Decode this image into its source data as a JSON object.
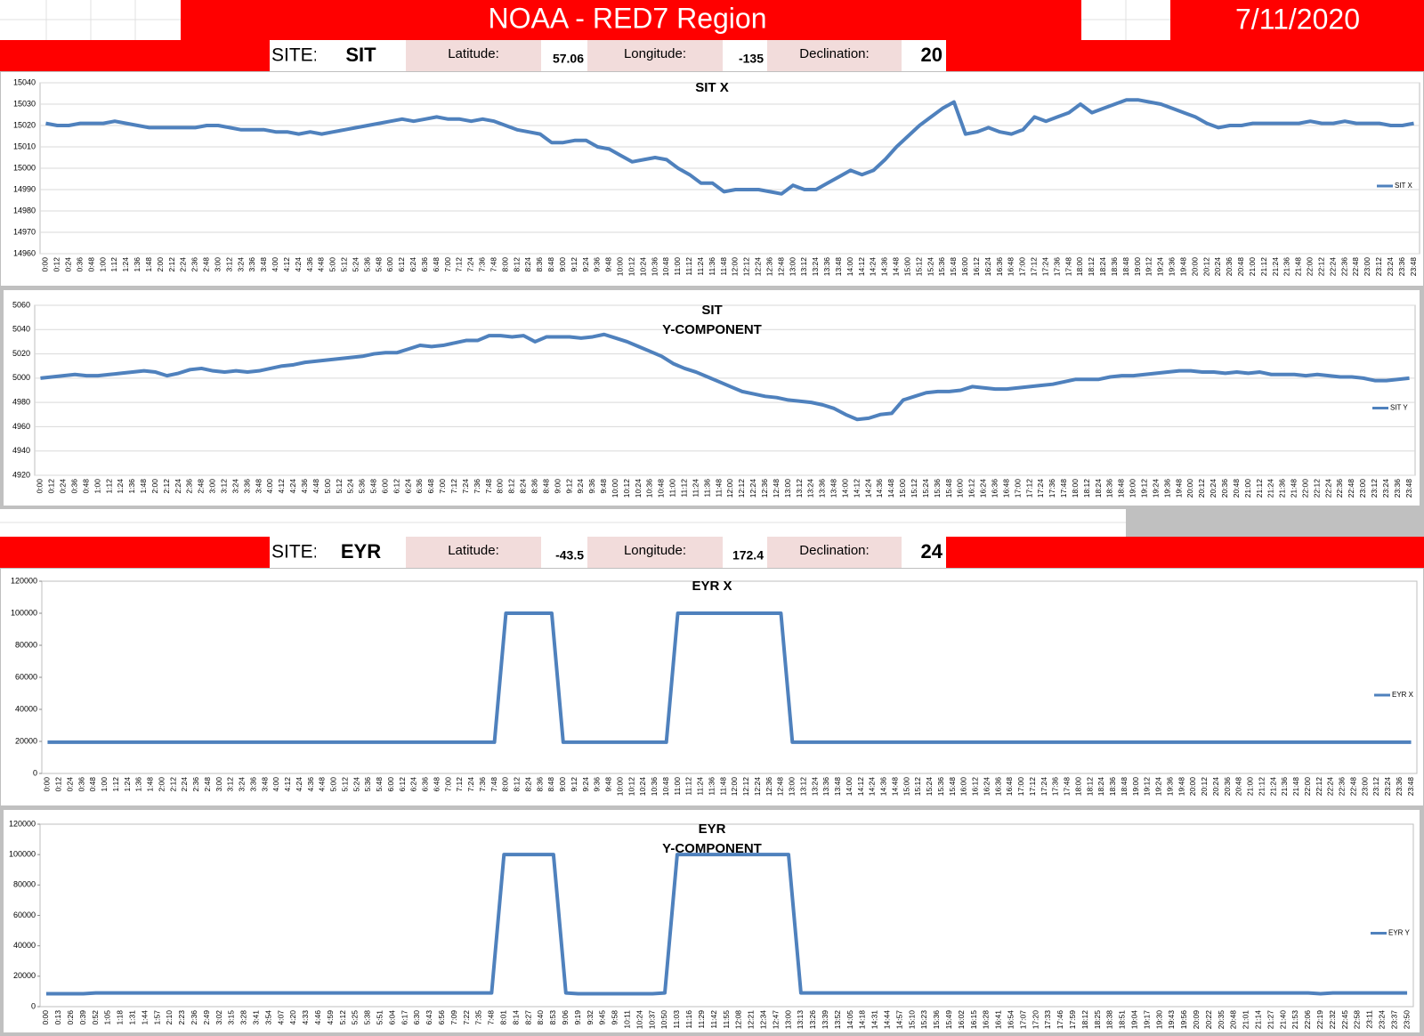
{
  "header": {
    "title": "NOAA - RED7 Region",
    "date": "7/11/2020"
  },
  "sites": [
    {
      "site_label": "SITE:",
      "site": "SIT",
      "latitude_label": "Latitude:",
      "latitude": 57.06,
      "longitude_label": "Longitude:",
      "longitude": -135,
      "declination_label": "Declination:",
      "declination": 20
    },
    {
      "site_label": "SITE:",
      "site": "EYR",
      "latitude_label": "Latitude:",
      "latitude": -43.5,
      "longitude_label": "Longitude:",
      "longitude": 172.4,
      "declination_label": "Declination:",
      "declination": 24
    }
  ],
  "chart_data": [
    {
      "type": "line",
      "title": "SIT X",
      "legend": "right",
      "categories": [
        "0:00",
        "0:12",
        "0:24",
        "0:36",
        "0:48",
        "1:00",
        "1:12",
        "1:24",
        "1:36",
        "1:48",
        "2:00",
        "2:12",
        "2:24",
        "2:36",
        "2:48",
        "3:00",
        "3:12",
        "3:24",
        "3:36",
        "3:48",
        "4:00",
        "4:12",
        "4:24",
        "4:36",
        "4:48",
        "5:00",
        "5:12",
        "5:24",
        "5:36",
        "5:48",
        "6:00",
        "6:12",
        "6:24",
        "6:36",
        "6:48",
        "7:00",
        "7:12",
        "7:24",
        "7:36",
        "7:48",
        "8:00",
        "8:12",
        "8:24",
        "8:36",
        "8:48",
        "9:00",
        "9:12",
        "9:24",
        "9:36",
        "9:48",
        "10:00",
        "10:12",
        "10:24",
        "10:36",
        "10:48",
        "11:00",
        "11:12",
        "11:24",
        "11:36",
        "11:48",
        "12:00",
        "12:12",
        "12:24",
        "12:36",
        "12:48",
        "13:00",
        "13:12",
        "13:24",
        "13:36",
        "13:48",
        "14:00",
        "14:12",
        "14:24",
        "14:36",
        "14:48",
        "15:00",
        "15:12",
        "15:24",
        "15:36",
        "15:48",
        "16:00",
        "16:12",
        "16:24",
        "16:36",
        "16:48",
        "17:00",
        "17:12",
        "17:24",
        "17:36",
        "17:48",
        "18:00",
        "18:12",
        "18:24",
        "18:36",
        "18:48",
        "19:00",
        "19:12",
        "19:24",
        "19:36",
        "19:48",
        "20:00",
        "20:12",
        "20:24",
        "20:36",
        "20:48",
        "21:00",
        "21:12",
        "21:24",
        "21:36",
        "21:48",
        "22:00",
        "22:12",
        "22:24",
        "22:36",
        "22:48",
        "23:00",
        "23:12",
        "23:24",
        "23:36",
        "23:48"
      ],
      "series": [
        {
          "name": "SIT X",
          "color": "#4f81bd",
          "values": [
            15021,
            15020,
            15020,
            15021,
            15021,
            15021,
            15022,
            15021,
            15020,
            15019,
            15019,
            15019,
            15019,
            15019,
            15020,
            15020,
            15019,
            15018,
            15018,
            15018,
            15017,
            15017,
            15016,
            15017,
            15016,
            15017,
            15018,
            15019,
            15020,
            15021,
            15022,
            15023,
            15022,
            15023,
            15024,
            15023,
            15023,
            15022,
            15023,
            15022,
            15020,
            15018,
            15017,
            15016,
            15012,
            15012,
            15013,
            15013,
            15010,
            15009,
            15006,
            15003,
            15004,
            15005,
            15004,
            15000,
            14997,
            14993,
            14993,
            14989,
            14990,
            14990,
            14990,
            14989,
            14988,
            14992,
            14990,
            14990,
            14993,
            14996,
            14999,
            14997,
            14999,
            15004,
            15010,
            15015,
            15020,
            15024,
            15028,
            15031,
            15016,
            15017,
            15019,
            15017,
            15016,
            15018,
            15024,
            15022,
            15024,
            15026,
            15030,
            15026,
            15028,
            15030,
            15032,
            15032,
            15031,
            15030,
            15028,
            15026,
            15024,
            15021,
            15019,
            15020,
            15020,
            15021,
            15021,
            15021,
            15021,
            15021,
            15022,
            15021,
            15021,
            15022,
            15021,
            15021,
            15021,
            15020,
            15020,
            15021
          ]
        }
      ],
      "ylim": [
        14960,
        15040
      ],
      "yticks": [
        14960,
        14970,
        14980,
        14990,
        15000,
        15010,
        15020,
        15030,
        15040
      ],
      "grid": true
    },
    {
      "type": "line",
      "title": "SIT",
      "subtitle": "Y-COMPONENT",
      "legend": "right",
      "categories": [
        "0:00",
        "0:12",
        "0:24",
        "0:36",
        "0:48",
        "1:00",
        "1:12",
        "1:24",
        "1:36",
        "1:48",
        "2:00",
        "2:12",
        "2:24",
        "2:36",
        "2:48",
        "3:00",
        "3:12",
        "3:24",
        "3:36",
        "3:48",
        "4:00",
        "4:12",
        "4:24",
        "4:36",
        "4:48",
        "5:00",
        "5:12",
        "5:24",
        "5:36",
        "5:48",
        "6:00",
        "6:12",
        "6:24",
        "6:36",
        "6:48",
        "7:00",
        "7:12",
        "7:24",
        "7:36",
        "7:48",
        "8:00",
        "8:12",
        "8:24",
        "8:36",
        "8:48",
        "9:00",
        "9:12",
        "9:24",
        "9:36",
        "9:48",
        "10:00",
        "10:12",
        "10:24",
        "10:36",
        "10:48",
        "11:00",
        "11:12",
        "11:24",
        "11:36",
        "11:48",
        "12:00",
        "12:12",
        "12:24",
        "12:36",
        "12:48",
        "13:00",
        "13:12",
        "13:24",
        "13:36",
        "13:48",
        "14:00",
        "14:12",
        "14:24",
        "14:36",
        "14:48",
        "15:00",
        "15:12",
        "15:24",
        "15:36",
        "15:48",
        "16:00",
        "16:12",
        "16:24",
        "16:36",
        "16:48",
        "17:00",
        "17:12",
        "17:24",
        "17:36",
        "17:48",
        "18:00",
        "18:12",
        "18:24",
        "18:36",
        "18:48",
        "19:00",
        "19:12",
        "19:24",
        "19:36",
        "19:48",
        "20:00",
        "20:12",
        "20:24",
        "20:36",
        "20:48",
        "21:00",
        "21:12",
        "21:24",
        "21:36",
        "21:48",
        "22:00",
        "22:12",
        "22:24",
        "22:36",
        "22:48",
        "23:00",
        "23:12",
        "23:24",
        "23:36",
        "23:48"
      ],
      "series": [
        {
          "name": "SIT Y",
          "color": "#4f81bd",
          "values": [
            5000,
            5001,
            5002,
            5003,
            5002,
            5002,
            5003,
            5004,
            5005,
            5006,
            5005,
            5002,
            5004,
            5007,
            5008,
            5006,
            5005,
            5006,
            5005,
            5006,
            5008,
            5010,
            5011,
            5013,
            5014,
            5015,
            5016,
            5017,
            5018,
            5020,
            5021,
            5021,
            5024,
            5027,
            5026,
            5027,
            5029,
            5031,
            5031,
            5035,
            5035,
            5034,
            5035,
            5030,
            5034,
            5034,
            5034,
            5033,
            5034,
            5036,
            5033,
            5030,
            5026,
            5022,
            5018,
            5012,
            5008,
            5005,
            5001,
            4997,
            4993,
            4989,
            4987,
            4985,
            4984,
            4982,
            4981,
            4980,
            4978,
            4975,
            4970,
            4966,
            4967,
            4970,
            4971,
            4982,
            4985,
            4988,
            4989,
            4989,
            4990,
            4993,
            4992,
            4991,
            4991,
            4992,
            4993,
            4994,
            4995,
            4997,
            4999,
            4999,
            4999,
            5001,
            5002,
            5002,
            5003,
            5004,
            5005,
            5006,
            5006,
            5005,
            5005,
            5004,
            5005,
            5004,
            5005,
            5003,
            5003,
            5003,
            5002,
            5003,
            5002,
            5001,
            5001,
            5000,
            4998,
            4998,
            4999,
            5000
          ]
        }
      ],
      "ylim": [
        4920,
        5060
      ],
      "yticks": [
        4920,
        4940,
        4960,
        4980,
        5000,
        5020,
        5040,
        5060
      ],
      "grid": true
    },
    {
      "type": "line",
      "title": "EYR X",
      "legend": "right",
      "categories": [
        "0:00",
        "0:12",
        "0:24",
        "0:36",
        "0:48",
        "1:00",
        "1:12",
        "1:24",
        "1:36",
        "1:48",
        "2:00",
        "2:12",
        "2:24",
        "2:36",
        "2:48",
        "3:00",
        "3:12",
        "3:24",
        "3:36",
        "3:48",
        "4:00",
        "4:12",
        "4:24",
        "4:36",
        "4:48",
        "5:00",
        "5:12",
        "5:24",
        "5:36",
        "5:48",
        "6:00",
        "6:12",
        "6:24",
        "6:36",
        "6:48",
        "7:00",
        "7:12",
        "7:24",
        "7:36",
        "7:48",
        "8:00",
        "8:12",
        "8:24",
        "8:36",
        "8:48",
        "9:00",
        "9:12",
        "9:24",
        "9:36",
        "9:48",
        "10:00",
        "10:12",
        "10:24",
        "10:36",
        "10:48",
        "11:00",
        "11:12",
        "11:24",
        "11:36",
        "11:48",
        "12:00",
        "12:12",
        "12:24",
        "12:36",
        "12:48",
        "13:00",
        "13:12",
        "13:24",
        "13:36",
        "13:48",
        "14:00",
        "14:12",
        "14:24",
        "14:36",
        "14:48",
        "15:00",
        "15:12",
        "15:24",
        "15:36",
        "15:48",
        "16:00",
        "16:12",
        "16:24",
        "16:36",
        "16:48",
        "17:00",
        "17:12",
        "17:24",
        "17:36",
        "17:48",
        "18:00",
        "18:12",
        "18:24",
        "18:36",
        "18:48",
        "19:00",
        "19:12",
        "19:24",
        "19:36",
        "19:48",
        "20:00",
        "20:12",
        "20:24",
        "20:36",
        "20:48",
        "21:00",
        "21:12",
        "21:24",
        "21:36",
        "21:48",
        "22:00",
        "22:12",
        "22:24",
        "22:36",
        "22:48",
        "23:00",
        "23:12",
        "23:24",
        "23:36",
        "23:48"
      ],
      "series": [
        {
          "name": "EYR X",
          "color": "#4f81bd",
          "values": [
            19500,
            19500,
            19500,
            19500,
            19500,
            19500,
            19500,
            19500,
            19500,
            19500,
            19500,
            19500,
            19500,
            19500,
            19500,
            19500,
            19500,
            19500,
            19500,
            19500,
            19500,
            19500,
            19500,
            19500,
            19500,
            19500,
            19500,
            19500,
            19500,
            19500,
            19500,
            19500,
            19500,
            19500,
            19500,
            19500,
            19500,
            19500,
            19500,
            19500,
            100000,
            100000,
            100000,
            100000,
            100000,
            19500,
            19500,
            19500,
            19500,
            19500,
            19500,
            19500,
            19500,
            19500,
            19500,
            100000,
            100000,
            100000,
            100000,
            100000,
            100000,
            100000,
            100000,
            100000,
            100000,
            19500,
            19500,
            19500,
            19500,
            19500,
            19500,
            19500,
            19500,
            19500,
            19500,
            19500,
            19500,
            19500,
            19500,
            19500,
            19500,
            19500,
            19500,
            19500,
            19500,
            19500,
            19500,
            19500,
            19500,
            19500,
            19500,
            19500,
            19500,
            19500,
            19500,
            19500,
            19500,
            19500,
            19500,
            19500,
            19500,
            19500,
            19500,
            19500,
            19500,
            19500,
            19500,
            19500,
            19500,
            19500,
            19500,
            19500,
            19500,
            19500,
            19500,
            19500,
            19500,
            19500,
            19500,
            19500
          ]
        }
      ],
      "ylim": [
        0,
        120000
      ],
      "yticks": [
        0,
        20000,
        40000,
        60000,
        80000,
        100000,
        120000
      ],
      "grid": false
    },
    {
      "type": "line",
      "title": "EYR",
      "subtitle": "Y-COMPONENT",
      "legend": "right",
      "categories": [
        "0:00",
        "0:13",
        "0:26",
        "0:39",
        "0:52",
        "1:05",
        "1:18",
        "1:31",
        "1:44",
        "1:57",
        "2:10",
        "2:23",
        "2:36",
        "2:49",
        "3:02",
        "3:15",
        "3:28",
        "3:41",
        "3:54",
        "4:07",
        "4:20",
        "4:33",
        "4:46",
        "4:59",
        "5:12",
        "5:25",
        "5:38",
        "5:51",
        "6:04",
        "6:17",
        "6:30",
        "6:43",
        "6:56",
        "7:09",
        "7:22",
        "7:35",
        "7:48",
        "8:01",
        "8:14",
        "8:27",
        "8:40",
        "8:53",
        "9:06",
        "9:19",
        "9:32",
        "9:45",
        "9:58",
        "10:11",
        "10:24",
        "10:37",
        "10:50",
        "11:03",
        "11:16",
        "11:29",
        "11:42",
        "11:55",
        "12:08",
        "12:21",
        "12:34",
        "12:47",
        "13:00",
        "13:13",
        "13:26",
        "13:39",
        "13:52",
        "14:05",
        "14:18",
        "14:31",
        "14:44",
        "14:57",
        "15:10",
        "15:23",
        "15:36",
        "15:49",
        "16:02",
        "16:15",
        "16:28",
        "16:41",
        "16:54",
        "17:07",
        "17:20",
        "17:33",
        "17:46",
        "17:59",
        "18:12",
        "18:25",
        "18:38",
        "18:51",
        "19:04",
        "19:17",
        "19:30",
        "19:43",
        "19:56",
        "20:09",
        "20:22",
        "20:35",
        "20:48",
        "21:01",
        "21:14",
        "21:27",
        "21:40",
        "21:53",
        "22:06",
        "22:19",
        "22:32",
        "22:45",
        "22:58",
        "23:11",
        "23:24",
        "23:37",
        "23:50"
      ],
      "series": [
        {
          "name": "EYR Y",
          "color": "#4f81bd",
          "values": [
            8500,
            8500,
            8500,
            8500,
            9000,
            9000,
            9000,
            9000,
            9000,
            9000,
            9000,
            9000,
            9000,
            9000,
            9000,
            9000,
            9000,
            9000,
            9000,
            9000,
            9000,
            9000,
            9000,
            9000,
            9000,
            9000,
            9000,
            9000,
            9000,
            9000,
            9000,
            9000,
            9000,
            9000,
            9000,
            9000,
            9000,
            100000,
            100000,
            100000,
            100000,
            100000,
            9000,
            8500,
            8500,
            8500,
            8500,
            8500,
            8500,
            8500,
            9000,
            100000,
            100000,
            100000,
            100000,
            100000,
            100000,
            100000,
            100000,
            100000,
            100000,
            9000,
            9000,
            9000,
            9000,
            9000,
            9000,
            9000,
            9000,
            9000,
            9000,
            9000,
            9000,
            9000,
            9000,
            9000,
            9000,
            9000,
            9000,
            9000,
            9000,
            9000,
            9000,
            9000,
            9000,
            9000,
            9000,
            9000,
            9000,
            9000,
            9000,
            9000,
            9000,
            9000,
            9000,
            9000,
            9000,
            9000,
            9000,
            9000,
            9000,
            9000,
            9000,
            8500,
            9000,
            9000,
            9000,
            9000,
            9000,
            9000,
            9000
          ]
        }
      ],
      "ylim": [
        0,
        120000
      ],
      "yticks": [
        0,
        20000,
        40000,
        60000,
        80000,
        100000,
        120000
      ],
      "grid": false
    }
  ]
}
